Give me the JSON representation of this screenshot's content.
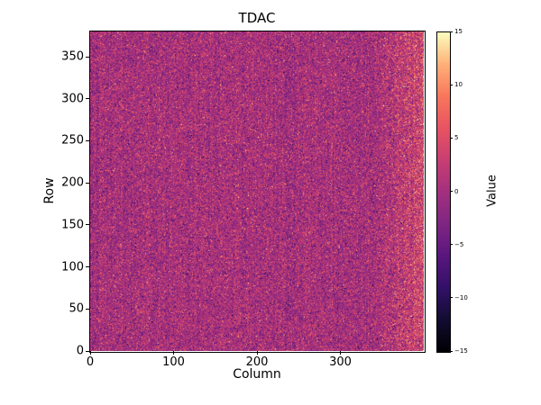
{
  "chart_data": {
    "type": "heatmap",
    "title": "TDAC",
    "xlabel": "Column",
    "ylabel": "Row",
    "colorbar_label": "Value",
    "x_range": [
      0,
      400
    ],
    "y_range": [
      0,
      380
    ],
    "value_range": [
      -15,
      15
    ],
    "x_ticks": [
      0,
      100,
      200,
      300
    ],
    "y_ticks": [
      0,
      50,
      100,
      150,
      200,
      250,
      300,
      350
    ],
    "colorbar_ticks": [
      15,
      10,
      5,
      0,
      -5,
      -10,
      -15
    ],
    "colormap": {
      "name": "magma",
      "stops": [
        [
          0.0,
          "#000004"
        ],
        [
          0.1,
          "#120d32"
        ],
        [
          0.2,
          "#331068"
        ],
        [
          0.3,
          "#5a167e"
        ],
        [
          0.4,
          "#7f2582"
        ],
        [
          0.5,
          "#a3307e"
        ],
        [
          0.6,
          "#c83e73"
        ],
        [
          0.7,
          "#e85362"
        ],
        [
          0.8,
          "#f8765c"
        ],
        [
          0.9,
          "#feb078"
        ],
        [
          1.0,
          "#fcfdbf"
        ]
      ]
    },
    "noise": {
      "description": "random TDAC tuning values per pixel, roughly centered at 0 with speckled outliers; columns near the right edge are biased toward higher values",
      "seed": 42,
      "base_mean": 0,
      "base_std": 2.6,
      "column_streak_std": 0.5,
      "pos_outlier_prob": 0.1,
      "pos_outlier_shift": [
        3,
        9
      ],
      "neg_outlier_prob": 0.05,
      "neg_outlier_shift": [
        3,
        9
      ],
      "right_ramp_start_col": 340,
      "right_ramp_width": 55,
      "right_band_extra_pos_prob": 0.25,
      "right_band_mean_shift": 1.5
    },
    "background_color": "#ffffff"
  }
}
